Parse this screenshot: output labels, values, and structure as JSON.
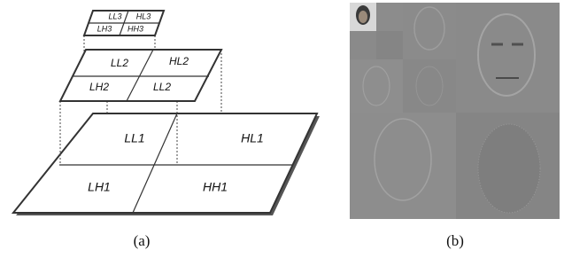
{
  "diagram": {
    "level3": [
      "LL3",
      "HL3",
      "LH3",
      "HH3"
    ],
    "level2": [
      "LL2",
      "HL2",
      "LH2",
      "LL2"
    ],
    "level1": [
      "LL1",
      "HL1",
      "LH1",
      "HH1"
    ]
  },
  "captions": [
    "(a)",
    "(b)"
  ]
}
